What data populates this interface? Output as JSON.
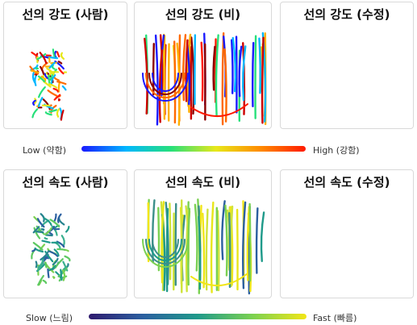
{
  "intensity": {
    "panels": [
      {
        "title": "선의 강도 (사람)"
      },
      {
        "title": "선의 강도 (비)"
      },
      {
        "title": "선의 강도 (수정)"
      }
    ],
    "legend": {
      "low": "Low (약함)",
      "high": "High (강함)"
    }
  },
  "speed": {
    "panels": [
      {
        "title": "선의 속도 (사람)"
      },
      {
        "title": "선의 속도 (비)"
      },
      {
        "title": "선의 속도 (수정)"
      }
    ],
    "legend": {
      "low": "Slow (느림)",
      "high": "Fast (빠름)"
    }
  },
  "colors": {
    "intensity_gradient": [
      "#1a1aff",
      "#00b7ff",
      "#27e07a",
      "#e8e81a",
      "#ff8a00",
      "#ff1a00"
    ],
    "speed_gradient": [
      "#2e1a6e",
      "#2b5fa0",
      "#1f9a8a",
      "#7ad151",
      "#f2e617"
    ]
  }
}
